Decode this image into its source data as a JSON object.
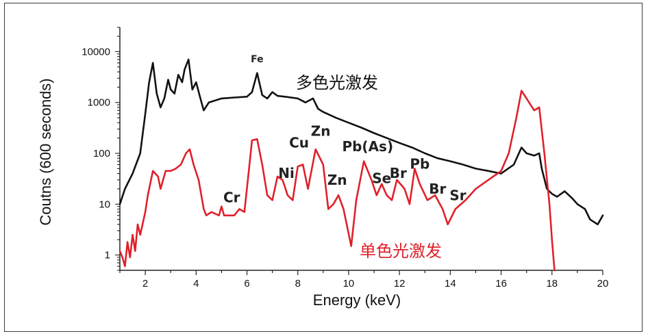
{
  "colors": {
    "multicolor": "#111111",
    "monochromatic": "#e0202a",
    "frame": "#3a3a3a"
  },
  "chart_data": {
    "type": "line",
    "title": "",
    "xlabel": "Energy (keV)",
    "ylabel": "Coutns (600 seconds)",
    "xlim": [
      1,
      20
    ],
    "ylim": [
      0.5,
      30000
    ],
    "yscale": "log",
    "x_ticks": [
      2,
      4,
      6,
      8,
      10,
      12,
      14,
      16,
      18,
      20
    ],
    "y_ticks": [
      {
        "value": 1,
        "label": "1"
      },
      {
        "value": 10,
        "label": "10"
      },
      {
        "value": 100,
        "label": "100"
      },
      {
        "value": 1000,
        "label": "1000"
      },
      {
        "value": 10000,
        "label": "10000"
      }
    ],
    "series": [
      {
        "name": "多色光激发",
        "color": "#111111",
        "x": [
          1.0,
          1.2,
          1.5,
          1.8,
          2.0,
          2.15,
          2.3,
          2.45,
          2.6,
          2.75,
          2.9,
          3.0,
          3.15,
          3.3,
          3.45,
          3.55,
          3.7,
          3.85,
          4.0,
          4.15,
          4.3,
          4.5,
          5.0,
          5.5,
          6.0,
          6.2,
          6.4,
          6.6,
          6.8,
          7.0,
          7.2,
          7.5,
          8.0,
          8.3,
          8.6,
          8.8,
          9.0,
          9.5,
          10.0,
          10.5,
          11.0,
          11.5,
          12.0,
          12.5,
          13.0,
          13.5,
          14.0,
          14.5,
          15.0,
          15.5,
          16.0,
          16.5,
          16.8,
          17.0,
          17.3,
          17.5,
          17.6,
          17.8,
          18.0,
          18.2,
          18.5,
          18.8,
          19.0,
          19.3,
          19.5,
          19.8,
          20.0
        ],
        "y": [
          10,
          20,
          40,
          100,
          600,
          2500,
          6000,
          1500,
          800,
          1200,
          2800,
          1800,
          1500,
          3500,
          2500,
          4500,
          7000,
          1800,
          2500,
          1300,
          700,
          1000,
          1200,
          1250,
          1300,
          1600,
          3800,
          1400,
          1200,
          1600,
          1350,
          1300,
          1200,
          1000,
          1200,
          750,
          650,
          500,
          400,
          320,
          250,
          200,
          160,
          130,
          100,
          80,
          70,
          60,
          50,
          45,
          40,
          60,
          130,
          100,
          90,
          100,
          50,
          20,
          16,
          14,
          18,
          13,
          10,
          8,
          5,
          4,
          6
        ]
      },
      {
        "name": "单色光激发",
        "color": "#e0202a",
        "x": [
          1.0,
          1.1,
          1.2,
          1.3,
          1.4,
          1.5,
          1.6,
          1.7,
          1.8,
          2.0,
          2.1,
          2.3,
          2.5,
          2.6,
          2.8,
          3.0,
          3.2,
          3.4,
          3.6,
          3.75,
          3.9,
          4.1,
          4.3,
          4.4,
          4.6,
          4.9,
          5.0,
          5.1,
          5.3,
          5.5,
          5.7,
          5.9,
          6.1,
          6.2,
          6.4,
          6.6,
          6.8,
          7.0,
          7.2,
          7.4,
          7.6,
          7.8,
          8.0,
          8.2,
          8.4,
          8.7,
          9.0,
          9.2,
          9.4,
          9.6,
          9.8,
          10.1,
          10.3,
          10.6,
          10.9,
          11.1,
          11.3,
          11.5,
          11.7,
          11.9,
          12.2,
          12.4,
          12.6,
          12.8,
          13.1,
          13.4,
          13.7,
          13.9,
          14.2,
          14.6,
          15.0,
          15.5,
          16.0,
          16.3,
          16.6,
          16.8,
          17.0,
          17.3,
          17.5,
          17.7,
          17.9,
          18.0,
          18.1
        ],
        "y": [
          1.2,
          0.9,
          0.6,
          1.8,
          0.9,
          2.5,
          1.2,
          4.0,
          2.5,
          7.0,
          15,
          45,
          35,
          20,
          45,
          45,
          50,
          60,
          100,
          120,
          60,
          30,
          8,
          6,
          7,
          6,
          9,
          6,
          6,
          6,
          8,
          7,
          60,
          180,
          190,
          60,
          15,
          12,
          35,
          30,
          15,
          12,
          55,
          60,
          20,
          120,
          60,
          8,
          10,
          15,
          8,
          1.5,
          12,
          70,
          30,
          15,
          25,
          15,
          12,
          30,
          20,
          10,
          50,
          25,
          12,
          15,
          8,
          4,
          8,
          12,
          20,
          30,
          45,
          100,
          500,
          1700,
          1200,
          700,
          800,
          100,
          10,
          2,
          0.5
        ]
      }
    ],
    "annotations": [
      {
        "text": "Fe",
        "x": 6.4,
        "y": 6200,
        "size": 14
      },
      {
        "text": "Cr",
        "x": 5.4,
        "y": 11,
        "size": 20
      },
      {
        "text": "Ni",
        "x": 7.55,
        "y": 33,
        "size": 20
      },
      {
        "text": "Cu",
        "x": 8.05,
        "y": 130,
        "size": 20
      },
      {
        "text": "Zn",
        "x": 8.9,
        "y": 220,
        "size": 20
      },
      {
        "text": "Zn",
        "x": 9.55,
        "y": 24,
        "size": 20
      },
      {
        "text": "Pb(As)",
        "x": 10.75,
        "y": 110,
        "size": 20
      },
      {
        "text": "Se",
        "x": 11.3,
        "y": 26,
        "size": 20
      },
      {
        "text": "Br",
        "x": 11.95,
        "y": 33,
        "size": 20
      },
      {
        "text": "Pb",
        "x": 12.8,
        "y": 50,
        "size": 20
      },
      {
        "text": "Br",
        "x": 13.5,
        "y": 16,
        "size": 20
      },
      {
        "text": "Sr",
        "x": 14.3,
        "y": 12,
        "size": 20
      }
    ],
    "legend": [
      {
        "text": "多色光激发",
        "color": "#111111",
        "position": "upper-middle"
      },
      {
        "text": "单色光激发",
        "color": "#e0202a",
        "position": "lower-middle"
      }
    ]
  }
}
